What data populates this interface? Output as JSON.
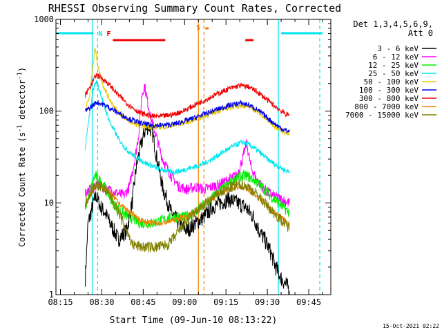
{
  "chart_data": {
    "type": "line",
    "title": "RHESSI Observing Summary Count Rates, Corrected",
    "xlabel": "Start Time (09-Jun-10 08:13:22)",
    "ylabel_main": "Corrected Count Rate (s",
    "ylabel_sup1": "-1",
    "ylabel_mid": " detector",
    "ylabel_sup2": "-1",
    "ylabel_end": ")",
    "yscale": "log",
    "ylim": [
      1,
      1000
    ],
    "xlim": [
      "08:13:22",
      "09:53:00"
    ],
    "x_ticks": [
      "08:15",
      "08:30",
      "08:45",
      "09:00",
      "09:15",
      "09:30",
      "09:45"
    ],
    "y_ticks": [
      {
        "value": 1,
        "label": "1"
      },
      {
        "value": 10,
        "label": "10"
      },
      {
        "value": 100,
        "label": "100"
      },
      {
        "value": 1000,
        "label": "1000"
      }
    ],
    "legend": {
      "header": [
        "Det 1,3,4,5,6,9,",
        "Att 0"
      ],
      "placement": "right"
    },
    "timestamp": "15-Oct-2021 02:22",
    "annotations": [
      {
        "text": "N",
        "time": "08:28:30",
        "color": "#00e5ee"
      },
      {
        "text": "F",
        "time": "08:33:30",
        "color": "#ff0000"
      },
      {
        "text": "S",
        "time": "09:06:00",
        "color": "#f08000"
      }
    ],
    "night_bars": [
      {
        "start": "08:13:22",
        "end": "08:27:00"
      },
      {
        "start": "09:35:00",
        "end": "09:50:00"
      }
    ],
    "flare_bars": [
      {
        "start": "08:34:00",
        "end": "08:53:00"
      },
      {
        "start": "09:22:00",
        "end": "09:25:00"
      }
    ],
    "vlines_solid": [
      {
        "time": "08:26:30",
        "color": "#00e5ee"
      },
      {
        "time": "09:05:00",
        "color": "#f08000"
      },
      {
        "time": "09:34:00",
        "color": "#00e5ee"
      }
    ],
    "vlines_dashed": [
      {
        "time": "08:28:30",
        "color": "#00e5ee"
      },
      {
        "time": "09:07:00",
        "color": "#f08000"
      },
      {
        "time": "09:49:00",
        "color": "#00e5ee"
      }
    ],
    "time_range": {
      "start": "08:24:00",
      "end": "09:38:00"
    },
    "series": [
      {
        "name": "3 - 6 keV",
        "color": "#000000",
        "points": [
          [
            "08:24:00",
            1.5
          ],
          [
            "08:25:00",
            6
          ],
          [
            "08:27:00",
            10
          ],
          [
            "08:28:00",
            12
          ],
          [
            "08:29:30",
            9
          ],
          [
            "08:31:00",
            8
          ],
          [
            "08:33:00",
            6
          ],
          [
            "08:36:00",
            4
          ],
          [
            "08:39:00",
            5
          ],
          [
            "08:41:00",
            10
          ],
          [
            "08:42:30",
            25
          ],
          [
            "08:44:00",
            40
          ],
          [
            "08:45:30",
            60
          ],
          [
            "08:47:00",
            70
          ],
          [
            "08:48:30",
            55
          ],
          [
            "08:50:00",
            30
          ],
          [
            "08:52:00",
            15
          ],
          [
            "08:55:00",
            8
          ],
          [
            "08:58:00",
            6
          ],
          [
            "09:01:00",
            5
          ],
          [
            "09:04:00",
            6
          ],
          [
            "09:07:00",
            7
          ],
          [
            "09:10:00",
            9
          ],
          [
            "09:13:00",
            10
          ],
          [
            "09:16:00",
            11
          ],
          [
            "09:19:00",
            10
          ],
          [
            "09:22:00",
            9
          ],
          [
            "09:25:00",
            7
          ],
          [
            "09:27:00",
            5
          ],
          [
            "09:29:00",
            4
          ],
          [
            "09:31:00",
            3
          ],
          [
            "09:33:00",
            2
          ],
          [
            "09:35:00",
            1.5
          ],
          [
            "09:37:30",
            1.2
          ]
        ]
      },
      {
        "name": "6 - 12 keV",
        "color": "#ff00ff",
        "points": [
          [
            "08:24:00",
            13
          ],
          [
            "08:26:00",
            14
          ],
          [
            "08:28:00",
            16
          ],
          [
            "08:30:00",
            15
          ],
          [
            "08:32:00",
            14
          ],
          [
            "08:35:00",
            13
          ],
          [
            "08:38:00",
            12
          ],
          [
            "08:40:00",
            15
          ],
          [
            "08:42:00",
            30
          ],
          [
            "08:43:30",
            60
          ],
          [
            "08:44:30",
            150
          ],
          [
            "08:45:30",
            190
          ],
          [
            "08:46:30",
            130
          ],
          [
            "08:48:00",
            80
          ],
          [
            "08:50:00",
            50
          ],
          [
            "08:52:00",
            30
          ],
          [
            "08:55:00",
            20
          ],
          [
            "08:58:00",
            15
          ],
          [
            "09:01:00",
            14
          ],
          [
            "09:04:00",
            15
          ],
          [
            "09:07:00",
            14
          ],
          [
            "09:10:00",
            15
          ],
          [
            "09:13:00",
            16
          ],
          [
            "09:16:00",
            18
          ],
          [
            "09:19:00",
            20
          ],
          [
            "09:21:00",
            30
          ],
          [
            "09:22:30",
            45
          ],
          [
            "09:24:00",
            25
          ],
          [
            "09:26:00",
            18
          ],
          [
            "09:29:00",
            14
          ],
          [
            "09:32:00",
            12
          ],
          [
            "09:35:00",
            11
          ],
          [
            "09:37:30",
            10
          ]
        ]
      },
      {
        "name": "12 - 25 keV",
        "color": "#00ee00",
        "points": [
          [
            "08:24:00",
            9
          ],
          [
            "08:26:00",
            14
          ],
          [
            "08:27:30",
            20
          ],
          [
            "08:29:00",
            18
          ],
          [
            "08:31:00",
            15
          ],
          [
            "08:34:00",
            10
          ],
          [
            "08:37:00",
            8
          ],
          [
            "08:40:00",
            7
          ],
          [
            "08:44:00",
            6
          ],
          [
            "08:48:00",
            6
          ],
          [
            "08:52:00",
            6.5
          ],
          [
            "08:56:00",
            7
          ],
          [
            "09:00:00",
            7
          ],
          [
            "09:04:00",
            8
          ],
          [
            "09:08:00",
            10
          ],
          [
            "09:12:00",
            13
          ],
          [
            "09:16:00",
            16
          ],
          [
            "09:19:00",
            19
          ],
          [
            "09:22:00",
            20
          ],
          [
            "09:25:00",
            18
          ],
          [
            "09:28:00",
            15
          ],
          [
            "09:31:00",
            12
          ],
          [
            "09:34:00",
            10
          ],
          [
            "09:37:30",
            8
          ]
        ]
      },
      {
        "name": "25 - 50 keV",
        "color": "#00e5ee",
        "points": [
          [
            "08:24:00",
            40
          ],
          [
            "08:25:30",
            90
          ],
          [
            "08:27:00",
            180
          ],
          [
            "08:28:00",
            210
          ],
          [
            "08:29:30",
            160
          ],
          [
            "08:31:00",
            110
          ],
          [
            "08:33:00",
            75
          ],
          [
            "08:36:00",
            50
          ],
          [
            "08:39:00",
            38
          ],
          [
            "08:42:00",
            32
          ],
          [
            "08:46:00",
            27
          ],
          [
            "08:50:00",
            24
          ],
          [
            "08:54:00",
            22
          ],
          [
            "08:58:00",
            22
          ],
          [
            "09:02:00",
            24
          ],
          [
            "09:06:00",
            26
          ],
          [
            "09:10:00",
            30
          ],
          [
            "09:14:00",
            36
          ],
          [
            "09:18:00",
            42
          ],
          [
            "09:21:00",
            46
          ],
          [
            "09:24:00",
            42
          ],
          [
            "09:27:00",
            36
          ],
          [
            "09:30:00",
            30
          ],
          [
            "09:33:00",
            26
          ],
          [
            "09:36:00",
            23
          ],
          [
            "09:37:30",
            22
          ]
        ]
      },
      {
        "name": "50 - 100 keV",
        "color": "#e6c800",
        "points": [
          [
            "08:24:00",
            105
          ],
          [
            "08:25:30",
            140
          ],
          [
            "08:26:30",
            260
          ],
          [
            "08:27:30",
            500
          ],
          [
            "08:28:30",
            320
          ],
          [
            "08:30:00",
            210
          ],
          [
            "08:32:00",
            150
          ],
          [
            "08:35:00",
            105
          ],
          [
            "08:38:00",
            85
          ],
          [
            "08:42:00",
            72
          ],
          [
            "08:46:00",
            68
          ],
          [
            "08:50:00",
            67
          ],
          [
            "08:54:00",
            68
          ],
          [
            "08:58:00",
            72
          ],
          [
            "09:02:00",
            78
          ],
          [
            "09:06:00",
            85
          ],
          [
            "09:10:00",
            95
          ],
          [
            "09:14:00",
            105
          ],
          [
            "09:18:00",
            112
          ],
          [
            "09:21:00",
            115
          ],
          [
            "09:24:00",
            110
          ],
          [
            "09:27:00",
            95
          ],
          [
            "09:30:00",
            80
          ],
          [
            "09:33:00",
            68
          ],
          [
            "09:36:00",
            60
          ],
          [
            "09:37:30",
            56
          ]
        ]
      },
      {
        "name": "100 - 300 keV",
        "color": "#0000ee",
        "points": [
          [
            "08:24:00",
            100
          ],
          [
            "08:26:00",
            110
          ],
          [
            "08:28:00",
            125
          ],
          [
            "08:30:00",
            120
          ],
          [
            "08:33:00",
            108
          ],
          [
            "08:36:00",
            95
          ],
          [
            "08:40:00",
            82
          ],
          [
            "08:44:00",
            74
          ],
          [
            "08:48:00",
            70
          ],
          [
            "08:52:00",
            70
          ],
          [
            "08:56:00",
            72
          ],
          [
            "09:00:00",
            78
          ],
          [
            "09:04:00",
            85
          ],
          [
            "09:08:00",
            95
          ],
          [
            "09:12:00",
            105
          ],
          [
            "09:16:00",
            115
          ],
          [
            "09:20:00",
            122
          ],
          [
            "09:23:00",
            118
          ],
          [
            "09:26:00",
            105
          ],
          [
            "09:29:00",
            90
          ],
          [
            "09:32:00",
            75
          ],
          [
            "09:35:00",
            65
          ],
          [
            "09:37:30",
            60
          ]
        ]
      },
      {
        "name": "300 - 800 keV",
        "color": "#ee0000",
        "points": [
          [
            "08:24:00",
            150
          ],
          [
            "08:26:00",
            190
          ],
          [
            "08:28:00",
            250
          ],
          [
            "08:30:00",
            230
          ],
          [
            "08:33:00",
            190
          ],
          [
            "08:36:00",
            150
          ],
          [
            "08:40:00",
            115
          ],
          [
            "08:44:00",
            95
          ],
          [
            "08:48:00",
            88
          ],
          [
            "08:52:00",
            88
          ],
          [
            "08:56:00",
            92
          ],
          [
            "09:00:00",
            102
          ],
          [
            "09:04:00",
            118
          ],
          [
            "09:08:00",
            135
          ],
          [
            "09:12:00",
            155
          ],
          [
            "09:16:00",
            175
          ],
          [
            "09:20:00",
            190
          ],
          [
            "09:23:00",
            185
          ],
          [
            "09:26:00",
            165
          ],
          [
            "09:29:00",
            140
          ],
          [
            "09:32:00",
            118
          ],
          [
            "09:35:00",
            100
          ],
          [
            "09:37:30",
            90
          ]
        ]
      },
      {
        "name": "800 - 7000 keV",
        "color": "#f08000",
        "points": [
          [
            "08:24:00",
            9
          ],
          [
            "08:26:00",
            13
          ],
          [
            "08:28:00",
            15
          ],
          [
            "08:30:00",
            15
          ],
          [
            "08:33:00",
            13
          ],
          [
            "08:36:00",
            10
          ],
          [
            "08:40:00",
            8
          ],
          [
            "08:44:00",
            6.5
          ],
          [
            "08:48:00",
            6
          ],
          [
            "08:52:00",
            6
          ],
          [
            "08:56:00",
            6.5
          ],
          [
            "09:00:00",
            7
          ],
          [
            "09:04:00",
            8
          ],
          [
            "09:08:00",
            10
          ],
          [
            "09:12:00",
            12
          ],
          [
            "09:16:00",
            14
          ],
          [
            "09:20:00",
            15
          ],
          [
            "09:23:00",
            14
          ],
          [
            "09:26:00",
            12
          ],
          [
            "09:29:00",
            10
          ],
          [
            "09:32:00",
            8
          ],
          [
            "09:35:00",
            7
          ],
          [
            "09:37:30",
            6
          ]
        ]
      },
      {
        "name": "7000 - 15000 keV",
        "color": "#808000",
        "points": [
          [
            "08:24:00",
            10
          ],
          [
            "08:26:00",
            13
          ],
          [
            "08:28:00",
            16
          ],
          [
            "08:30:00",
            15
          ],
          [
            "08:33:00",
            12
          ],
          [
            "08:36:00",
            8
          ],
          [
            "08:39:00",
            5
          ],
          [
            "08:41:00",
            3.5
          ],
          [
            "08:45:00",
            3.3
          ],
          [
            "08:50:00",
            3.3
          ],
          [
            "08:54:00",
            3.5
          ],
          [
            "08:57:00",
            4.5
          ],
          [
            "09:00:00",
            6
          ],
          [
            "09:04:00",
            8
          ],
          [
            "09:08:00",
            10
          ],
          [
            "09:12:00",
            12.5
          ],
          [
            "09:16:00",
            14.5
          ],
          [
            "09:20:00",
            16
          ],
          [
            "09:23:00",
            15
          ],
          [
            "09:26:00",
            12.5
          ],
          [
            "09:29:00",
            10
          ],
          [
            "09:32:00",
            8
          ],
          [
            "09:35:00",
            6.5
          ],
          [
            "09:37:30",
            5.5
          ]
        ]
      }
    ]
  }
}
